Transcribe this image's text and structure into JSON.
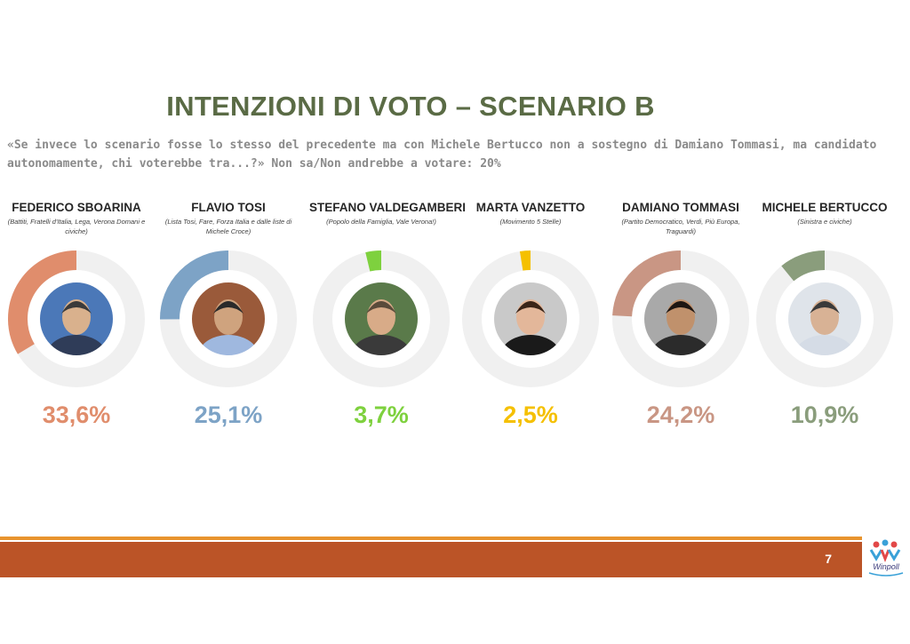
{
  "title": "INTENZIONI DI VOTO – SCENARIO B",
  "question": "«Se invece lo scenario fosse lo stesso del precedente ma con Michele Bertucco non a sostegno di Damiano Tommasi, ma candidato autonomamente, chi voterebbe tra...?» Non sa/Non andrebbe a votare: 20%",
  "page_number": "7",
  "logo_text": "Winpoll",
  "chart_data": {
    "type": "bar",
    "title": "INTENZIONI DI VOTO – SCENARIO B",
    "categories": [
      "FEDERICO SBOARINA",
      "FLAVIO TOSI",
      "STEFANO VALDEGAMBERI",
      "MARTA  VANZETTO",
      "DAMIANO TOMMASI",
      "MICHELE BERTUCCO"
    ],
    "values": [
      33.6,
      25.1,
      3.7,
      2.5,
      24.2,
      10.9
    ],
    "unit": "%",
    "candidates": [
      {
        "name": "FEDERICO SBOARINA",
        "party": "(Battiti, Fratelli d'Italia, Lega, Verona Domani e civiche)",
        "label": "33,6%",
        "value": 33.6,
        "color": "#e08d6c"
      },
      {
        "name": "FLAVIO TOSI",
        "party": "(Lista Tosi, Fare, Forza Italia e dalle liste di Michele Croce)",
        "label": "25,1%",
        "value": 25.1,
        "color": "#7da3c6"
      },
      {
        "name": "STEFANO VALDEGAMBERI",
        "party": "(Popolo della Famiglia, Vale Verona!)",
        "label": "3,7%",
        "value": 3.7,
        "color": "#7ed13e"
      },
      {
        "name": "MARTA  VANZETTO",
        "party": "(Movimento 5 Stelle)",
        "label": "2,5%",
        "value": 2.5,
        "color": "#f5c000"
      },
      {
        "name": "DAMIANO TOMMASI",
        "party": "(Partito Democratico, Verdi, Più Europa, Traguardi)",
        "label": "24,2%",
        "value": 24.2,
        "color": "#c99684"
      },
      {
        "name": "MICHELE BERTUCCO",
        "party": "(Sinistra e civiche)",
        "label": "10,9%",
        "value": 10.9,
        "color": "#8a9d7c"
      }
    ]
  }
}
